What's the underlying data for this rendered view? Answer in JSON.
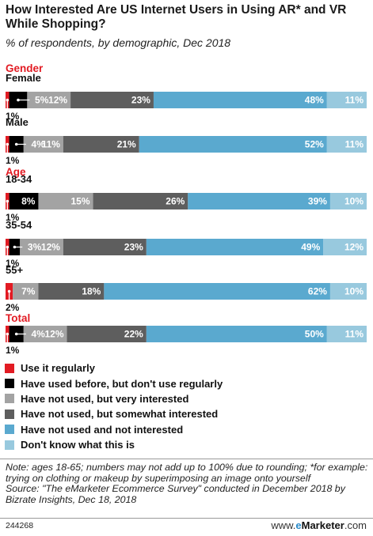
{
  "title": "How Interested Are US Internet Users in Using AR* and VR While Shopping?",
  "subtitle": "% of respondents, by demographic, Dec 2018",
  "chart_data": {
    "type": "bar",
    "stacked": true,
    "orientation": "horizontal",
    "groups": [
      {
        "label": "Gender",
        "rows": [
          {
            "label": "Female",
            "values": [
              1,
              5,
              12,
              23,
              48,
              11
            ]
          },
          {
            "label": "Male",
            "values": [
              1,
              4,
              11,
              21,
              52,
              11
            ]
          }
        ]
      },
      {
        "label": "Age",
        "rows": [
          {
            "label": "18-34",
            "values": [
              1,
              8,
              15,
              26,
              39,
              10
            ]
          },
          {
            "label": "35-54",
            "values": [
              1,
              3,
              12,
              23,
              49,
              12
            ]
          },
          {
            "label": "55+",
            "values": [
              2,
              0,
              7,
              18,
              62,
              10
            ]
          }
        ]
      },
      {
        "label": "Total",
        "rows": [
          {
            "label": "",
            "values": [
              1,
              4,
              12,
              22,
              50,
              11
            ]
          }
        ]
      }
    ],
    "series": [
      {
        "name": "Use it regularly",
        "color": "#e21b23"
      },
      {
        "name": "Have used before, but don't use regularly",
        "color": "#000000"
      },
      {
        "name": "Have not used, but very interested",
        "color": "#a3a3a3"
      },
      {
        "name": "Have not used, but somewhat interested",
        "color": "#5e5e5e"
      },
      {
        "name": "Have not used and not interested",
        "color": "#5aa9cf"
      },
      {
        "name": "Don't know what this is",
        "color": "#98c9de"
      }
    ],
    "value_suffix": "%",
    "group_label_color": "#e21b23"
  },
  "notes": {
    "note": "Note: ages 18-65; numbers may not add up to 100% due to rounding; *for example: trying on clothing or makeup by superimposing an image onto yourself",
    "source": "Source: \"The eMarketer Ecommerce Survey\" conducted in December 2018 by Bizrate Insights, Dec 18, 2018"
  },
  "footer": {
    "chart_id": "244268",
    "brand_prefix": "www.",
    "brand_name": "eMarketer",
    "brand_suffix": ".com"
  }
}
